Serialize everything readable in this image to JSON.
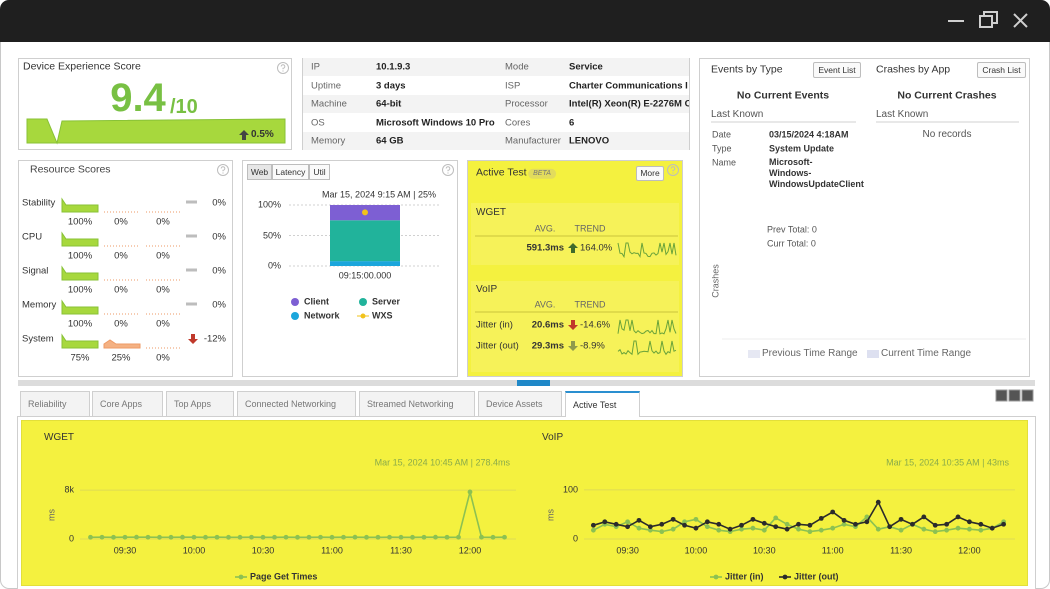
{
  "device_score": {
    "title": "Device Experience Score",
    "score": "9.4",
    "scale": "/10",
    "change": "0.5%"
  },
  "device_info": {
    "rows": [
      [
        "IP",
        "10.1.9.3",
        "Mode",
        "Service"
      ],
      [
        "Uptime",
        "3 days",
        "ISP",
        "Charter Communications I"
      ],
      [
        "Machine",
        "64-bit",
        "Processor",
        "Intel(R) Xeon(R) E-2276M C"
      ],
      [
        "OS",
        "Microsoft Windows 10 Pro",
        "Cores",
        "6"
      ],
      [
        "Memory",
        "64 GB",
        "Manufacturer",
        "LENOVO"
      ]
    ]
  },
  "resource_scores": {
    "title": "Resource Scores",
    "rows": [
      {
        "name": "Stability",
        "scores": [
          "100%",
          "0%",
          "0%"
        ],
        "change": "0%",
        "trend": "flat"
      },
      {
        "name": "CPU",
        "scores": [
          "100%",
          "0%",
          "0%"
        ],
        "change": "0%",
        "trend": "flat"
      },
      {
        "name": "Signal",
        "scores": [
          "100%",
          "0%",
          "0%"
        ],
        "change": "0%",
        "trend": "flat"
      },
      {
        "name": "Memory",
        "scores": [
          "100%",
          "0%",
          "0%"
        ],
        "change": "0%",
        "trend": "flat"
      },
      {
        "name": "System",
        "scores": [
          "75%",
          "25%",
          "0%"
        ],
        "change": "-12%",
        "trend": "down"
      }
    ]
  },
  "response_time": {
    "tabs": [
      "Web",
      "Latency",
      "Util"
    ],
    "chart_data": {
      "type": "bar",
      "stacked": true,
      "tooltip": "Mar 15, 2024 9:15 AM | 25%",
      "categories": [
        "09:15:00.000"
      ],
      "series": [
        {
          "name": "Client",
          "color": "#7d5fd3",
          "values": [
            25
          ]
        },
        {
          "name": "Server",
          "color": "#21b39b",
          "values": [
            67
          ]
        },
        {
          "name": "Network",
          "color": "#1ba6dc",
          "values": [
            8
          ]
        }
      ],
      "markers": {
        "name": "WXS",
        "color": "#f2c31b",
        "values": [
          88
        ]
      },
      "ylim": [
        0,
        100
      ],
      "yticks": [
        {
          "value": 0,
          "label": "0%"
        },
        {
          "value": 50,
          "label": "50%"
        },
        {
          "value": 100,
          "label": "100%"
        }
      ]
    }
  },
  "active_test": {
    "title": "Active Test",
    "badge": "BETA",
    "button": "More",
    "wget": {
      "title": "WGET",
      "headers": [
        "AVG.",
        "TREND"
      ],
      "rows": [
        {
          "avg": "591.3ms",
          "trend": "164.0%",
          "direction": "up",
          "arrow_color": "#3f6a2c"
        }
      ]
    },
    "voip": {
      "title": "VoIP",
      "headers": [
        "AVG.",
        "TREND"
      ],
      "rows": [
        {
          "name": "Jitter (in)",
          "avg": "20.6ms",
          "trend": "-14.6%",
          "direction": "down",
          "arrow_color": "#c0392b"
        },
        {
          "name": "Jitter (out)",
          "avg": "29.3ms",
          "trend": "-8.9%",
          "direction": "down",
          "arrow_color": "#8f9a4c"
        }
      ]
    }
  },
  "events": {
    "title": "Events by Type",
    "button": "Event List",
    "status": "No Current Events",
    "period": "Last Known",
    "fields": [
      {
        "label": "Date",
        "value": "03/15/2024 4:18AM"
      },
      {
        "label": "Type",
        "value": "System Update"
      },
      {
        "label": "Name",
        "value": "Microsoft-Windows-WindowsUpdateClient"
      }
    ],
    "prev_total": "Prev Total: 0",
    "curr_total": "Curr Total: 0",
    "axis_label": "Crashes",
    "legend": [
      "Previous Time Range",
      "Current Time Range"
    ]
  },
  "crashes": {
    "title": "Crashes by App",
    "button": "Crash List",
    "status": "No Current Crashes",
    "period": "Last Known",
    "empty": "No records"
  },
  "tabs": {
    "items": [
      "Reliability",
      "Core Apps",
      "Top Apps",
      "Connected Networking",
      "Streamed Networking",
      "Device Assets",
      "Active Test"
    ],
    "active": 6
  },
  "charts": [
    {
      "type": "line",
      "title": "WGET",
      "tooltip": "Mar 15, 2024 10:45 AM | 278.4ms",
      "y_label": "ms",
      "x": [
        "09:15",
        "09:20",
        "09:25",
        "09:30",
        "09:35",
        "09:40",
        "09:45",
        "09:50",
        "09:55",
        "10:00",
        "10:05",
        "10:10",
        "10:15",
        "10:20",
        "10:25",
        "10:30",
        "10:35",
        "10:40",
        "10:45",
        "10:50",
        "10:55",
        "11:00",
        "11:05",
        "11:10",
        "11:15",
        "11:20",
        "11:25",
        "11:30",
        "11:35",
        "11:40",
        "11:45",
        "11:50",
        "11:55",
        "12:00",
        "12:05",
        "12:10",
        "12:15"
      ],
      "xlim": [
        "09:10",
        "12:20"
      ],
      "xticks": [
        "09:30",
        "10:00",
        "10:30",
        "11:00",
        "11:30",
        "12:00"
      ],
      "ylim": [
        0,
        9000
      ],
      "yticks": [
        0,
        {
          "value": 8000,
          "label": "8k"
        }
      ],
      "series": [
        {
          "name": "Page Get Times",
          "color": "#8cc152",
          "values": [
            285,
            290,
            280,
            292,
            301,
            288,
            279,
            283,
            295,
            290,
            282,
            287,
            280,
            284,
            291,
            286,
            283,
            289,
            278.4,
            285,
            292,
            281,
            288,
            294,
            280,
            286,
            290,
            283,
            279,
            287,
            293,
            285,
            288,
            7700,
            296,
            284,
            289
          ]
        }
      ]
    },
    {
      "type": "line",
      "title": "VoIP",
      "tooltip": "Mar 15, 2024 10:35 AM | 43ms",
      "y_label": "ms",
      "x": [
        "09:15",
        "09:20",
        "09:25",
        "09:30",
        "09:35",
        "09:40",
        "09:45",
        "09:50",
        "09:55",
        "10:00",
        "10:05",
        "10:10",
        "10:15",
        "10:20",
        "10:25",
        "10:30",
        "10:35",
        "10:40",
        "10:45",
        "10:50",
        "10:55",
        "11:00",
        "11:05",
        "11:10",
        "11:15",
        "11:20",
        "11:25",
        "11:30",
        "11:35",
        "11:40",
        "11:45",
        "11:50",
        "11:55",
        "12:00",
        "12:05",
        "12:10",
        "12:15"
      ],
      "xlim": [
        "09:10",
        "12:20"
      ],
      "xticks": [
        "09:30",
        "10:00",
        "10:30",
        "11:00",
        "11:30",
        "12:00"
      ],
      "ylim": [
        0,
        110
      ],
      "yticks": [
        0,
        100
      ],
      "series": [
        {
          "name": "Jitter (in)",
          "color": "#8cc152",
          "values": [
            18,
            30,
            25,
            35,
            22,
            18,
            15,
            20,
            35,
            40,
            25,
            18,
            15,
            20,
            22,
            18,
            43,
            30,
            20,
            15,
            18,
            22,
            30,
            25,
            45,
            20,
            25,
            18,
            30,
            20,
            15,
            18,
            22,
            20,
            18,
            22,
            35
          ]
        },
        {
          "name": "Jitter (out)",
          "color": "#2b2b2b",
          "values": [
            28,
            35,
            30,
            25,
            38,
            25,
            30,
            40,
            28,
            22,
            35,
            30,
            20,
            28,
            40,
            32,
            25,
            20,
            30,
            28,
            42,
            55,
            38,
            30,
            35,
            75,
            25,
            40,
            30,
            45,
            28,
            30,
            45,
            35,
            30,
            22,
            30
          ]
        }
      ]
    }
  ]
}
